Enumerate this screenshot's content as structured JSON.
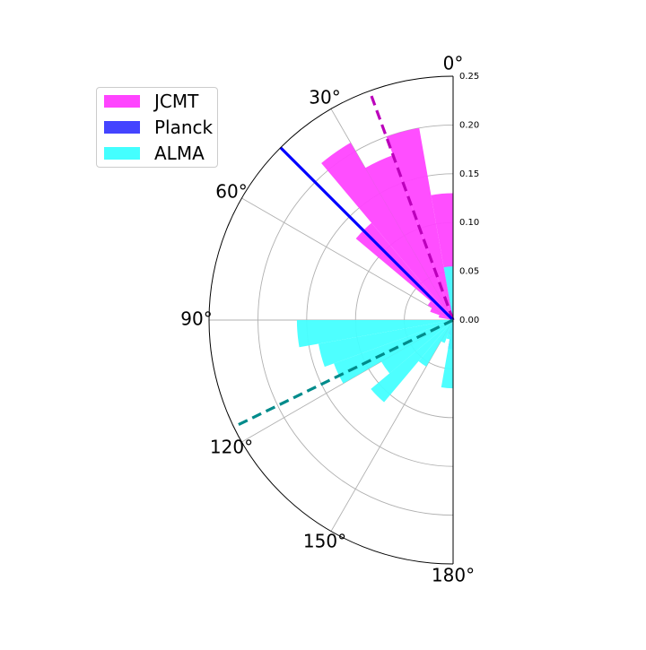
{
  "chart_data": {
    "type": "polar-histogram",
    "theta_unit": "degrees",
    "theta_range": [
      0,
      180
    ],
    "theta_direction": "clockwise",
    "theta_zero_location": "top",
    "theta_tick_labels": [
      "0°",
      "30°",
      "60°",
      "90°",
      "120°",
      "150°",
      "180°"
    ],
    "r_tick_labels": [
      "0.00",
      "0.05",
      "0.10",
      "0.15",
      "0.20",
      "0.25"
    ],
    "rlim": [
      0,
      0.25
    ],
    "grid": true,
    "legend_position": "upper-left",
    "bin_width_deg": 10,
    "series": [
      {
        "name": "JCMT",
        "color": "#ff44ff",
        "bins": [
          {
            "theta": 5,
            "r": 0.13
          },
          {
            "theta": 15,
            "r": 0.2
          },
          {
            "theta": 25,
            "r": 0.18
          },
          {
            "theta": 35,
            "r": 0.21
          },
          {
            "theta": 45,
            "r": 0.13
          },
          {
            "theta": 55,
            "r": 0.03
          },
          {
            "theta": 65,
            "r": 0.025
          },
          {
            "theta": 75,
            "r": 0.015
          },
          {
            "theta": 165,
            "r": 0.015
          },
          {
            "theta": 175,
            "r": 0.005
          }
        ]
      },
      {
        "name": "Planck",
        "color": "#4444ff",
        "bins": [
          {
            "theta": 5,
            "r": 0.015
          },
          {
            "theta": 175,
            "r": 0.03
          }
        ]
      },
      {
        "name": "ALMA",
        "color": "#44ffff",
        "bins": [
          {
            "theta": 5,
            "r": 0.055
          },
          {
            "theta": 95,
            "r": 0.16
          },
          {
            "theta": 105,
            "r": 0.14
          },
          {
            "theta": 115,
            "r": 0.13
          },
          {
            "theta": 125,
            "r": 0.085
          },
          {
            "theta": 135,
            "r": 0.11
          },
          {
            "theta": 145,
            "r": 0.055
          },
          {
            "theta": 155,
            "r": 0.025
          },
          {
            "theta": 165,
            "r": 0.02
          },
          {
            "theta": 175,
            "r": 0.07
          }
        ]
      }
    ],
    "mean_lines": [
      {
        "theta": 20,
        "r": 0.25,
        "color": "#bb00bb",
        "style": "dashed"
      },
      {
        "theta": 45,
        "r": 0.25,
        "color": "#0000ff",
        "style": "solid"
      },
      {
        "theta": 116,
        "r": 0.25,
        "color": "#008b8b",
        "style": "dashed"
      }
    ]
  }
}
